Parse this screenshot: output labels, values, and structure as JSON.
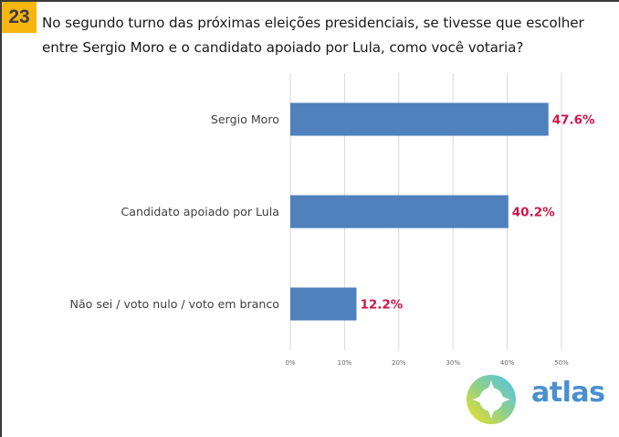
{
  "question": {
    "number": "23",
    "text": "No segundo turno das próximas eleições presidenciais, se tivesse que escolher entre Sergio Moro e o candidato apoiado por Lula, como você votaria?"
  },
  "colors": {
    "badge": "#F6B60F",
    "bar": "#4F81BD",
    "value_label": "#D0154B",
    "grid": "#D9D9D9"
  },
  "chart_data": {
    "type": "bar",
    "orientation": "horizontal",
    "title": "No segundo turno das próximas eleições presidenciais, se tivesse que escolher entre Sergio Moro e o candidato apoiado por Lula, como você votaria?",
    "categories": [
      "Sergio Moro",
      "Candidato apoiado por Lula",
      "Não sei / voto nulo / voto em branco"
    ],
    "values": [
      47.6,
      40.2,
      12.2
    ],
    "value_labels": [
      "47.6%",
      "40.2%",
      "12.2%"
    ],
    "xlabel": "",
    "ylabel": "",
    "xlim": [
      0,
      50
    ],
    "xticks": [
      0,
      10,
      20,
      30,
      40,
      50
    ],
    "xtick_labels": [
      "0%",
      "10%",
      "20%",
      "30%",
      "40%",
      "50%"
    ],
    "grid": true,
    "legend": "none"
  },
  "logo": {
    "text": "atlas",
    "icon": "compass-star-ring-icon"
  }
}
